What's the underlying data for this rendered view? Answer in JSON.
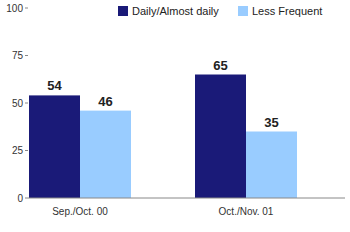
{
  "chart_data": {
    "type": "bar",
    "categories": [
      "Sep./Oct. 00",
      "Oct./Nov. 01"
    ],
    "series": [
      {
        "name": "Daily/Almost daily",
        "color": "#1a1a78",
        "values": [
          54,
          65
        ]
      },
      {
        "name": "Less Frequent",
        "color": "#99ccff",
        "values": [
          46,
          35
        ]
      }
    ],
    "ylim": [
      0,
      100
    ],
    "yticks": [
      0,
      25,
      50,
      75,
      100
    ],
    "grid": false,
    "legend": "top",
    "data_labels": true
  }
}
